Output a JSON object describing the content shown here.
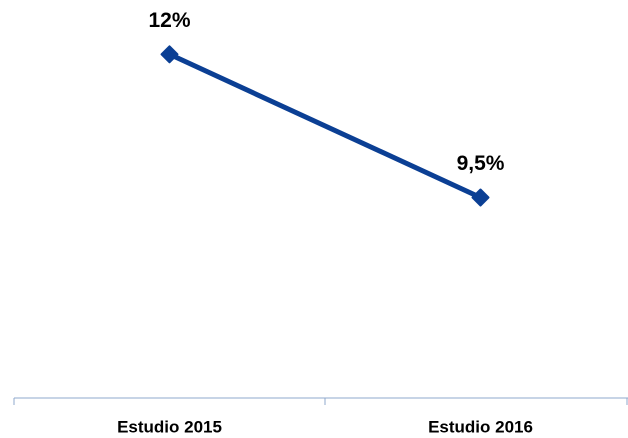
{
  "chart_data": {
    "type": "line",
    "categories": [
      "Estudio 2015",
      "Estudio 2016"
    ],
    "series": [
      {
        "color": "#0b3f94",
        "values": [
          12,
          9.5
        ],
        "value_labels": [
          "12%",
          "9,5%"
        ]
      }
    ],
    "ylim": [
      6,
      13
    ]
  }
}
